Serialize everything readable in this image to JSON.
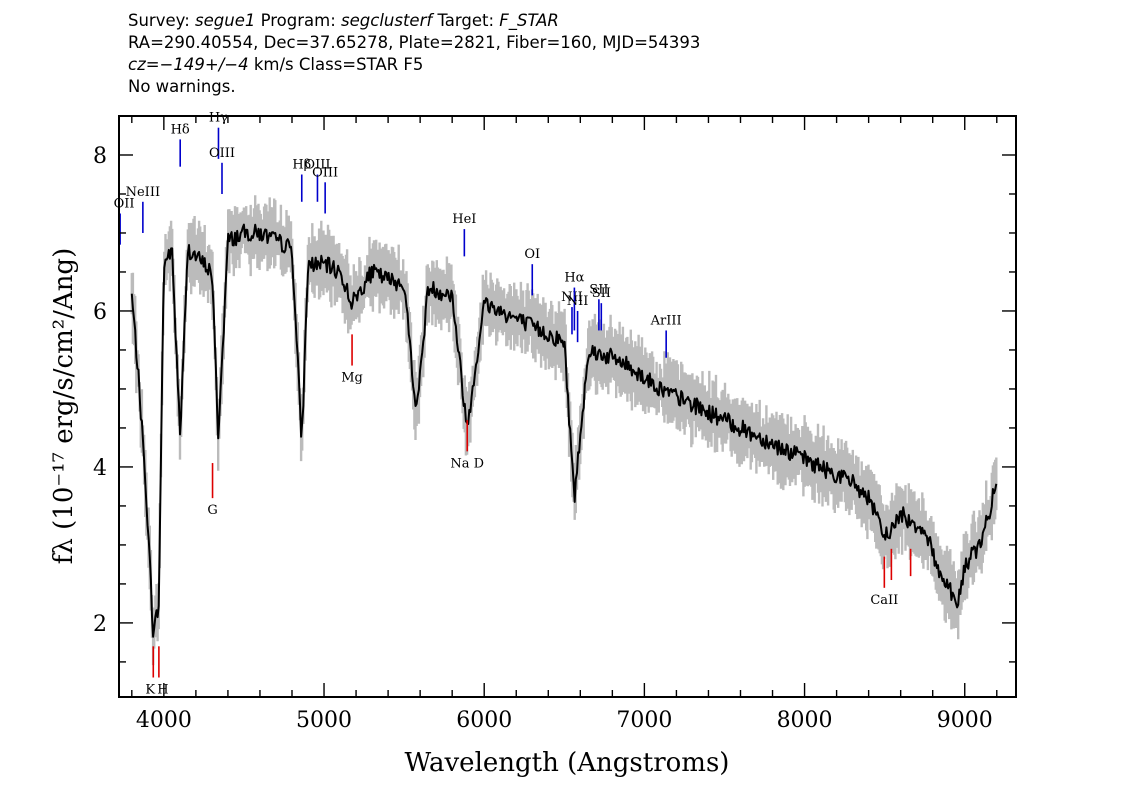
{
  "header": {
    "survey_label": "Survey:",
    "survey": "segue1",
    "program_label": "Program:",
    "program": "segclusterf",
    "target_label": "Target:",
    "target": "F_STAR",
    "line2": "RA=290.40554, Dec=37.65278, Plate=2821, Fiber=160, MJD=54393",
    "cz": "cz=−149+/−4",
    "cz_units": "km/s",
    "class_text": "Class=STAR F5",
    "warnings": "No warnings."
  },
  "chart_data": {
    "type": "line",
    "xlabel": "Wavelength (Angstroms)",
    "ylabel": "fλ (10⁻¹⁷ erg/s/cm²/Ang)",
    "xlim": [
      3720,
      9320
    ],
    "ylim": [
      1.05,
      8.5
    ],
    "x_ticks": [
      4000,
      5000,
      6000,
      7000,
      8000,
      9000
    ],
    "x_tick_labels": [
      "4000",
      "5000",
      "6000",
      "7000",
      "8000",
      "9000"
    ],
    "y_ticks": [
      2,
      4,
      6,
      8
    ],
    "y_tick_labels": [
      "2",
      "4",
      "6",
      "8"
    ],
    "grid": false,
    "series": [
      {
        "style": "flux",
        "color": "#000000",
        "x": [
          3800,
          3840,
          3889,
          3933,
          3968,
          4000,
          4050,
          4102,
          4150,
          4200,
          4250,
          4300,
          4340,
          4400,
          4500,
          4600,
          4700,
          4800,
          4861,
          4900,
          5000,
          5100,
          5175,
          5300,
          5400,
          5500,
          5577,
          5650,
          5800,
          5893,
          6000,
          6100,
          6200,
          6300,
          6400,
          6500,
          6563,
          6650,
          6800,
          6900,
          7000,
          7100,
          7200,
          7300,
          7400,
          7500,
          7600,
          7700,
          7800,
          7900,
          8000,
          8100,
          8200,
          8300,
          8400,
          8498,
          8542,
          8600,
          8662,
          8750,
          8850,
          8900,
          8950,
          9000,
          9050,
          9100,
          9150,
          9200
        ],
        "y": [
          6.2,
          5.2,
          3.7,
          1.9,
          2.2,
          6.6,
          6.8,
          4.4,
          6.8,
          6.7,
          6.6,
          6.5,
          4.4,
          6.9,
          7.0,
          7.0,
          6.9,
          6.8,
          4.3,
          6.6,
          6.6,
          6.5,
          6.1,
          6.5,
          6.4,
          6.35,
          4.7,
          6.3,
          6.2,
          4.5,
          6.1,
          6.0,
          5.9,
          5.8,
          5.7,
          5.6,
          3.6,
          5.5,
          5.4,
          5.3,
          5.15,
          5.0,
          4.9,
          4.8,
          4.7,
          4.6,
          4.5,
          4.4,
          4.3,
          4.2,
          4.1,
          4.0,
          3.9,
          3.8,
          3.6,
          3.1,
          3.2,
          3.4,
          3.3,
          3.2,
          2.6,
          2.5,
          2.2,
          2.7,
          2.9,
          3.0,
          3.4,
          3.8
        ]
      },
      {
        "style": "error",
        "color": "#bbbbbb"
      }
    ],
    "emission_lines": [
      {
        "label": "OII",
        "x": 3727,
        "y_bottom": 6.85,
        "y_top": 7.25
      },
      {
        "label": "NeIII",
        "x": 3869,
        "y_bottom": 7.0,
        "y_top": 7.4
      },
      {
        "label": "Hδ",
        "x": 4102,
        "y_bottom": 7.85,
        "y_top": 8.2
      },
      {
        "label": "Hγ",
        "x": 4341,
        "y_bottom": 7.95,
        "y_top": 8.35
      },
      {
        "label": "OIII",
        "x": 4363,
        "y_bottom": 7.5,
        "y_top": 7.9
      },
      {
        "label": "Hβ",
        "x": 4861,
        "y_bottom": 7.4,
        "y_top": 7.75
      },
      {
        "label": "OIII",
        "x": 4959,
        "y_bottom": 7.4,
        "y_top": 7.75
      },
      {
        "label": "OIII",
        "x": 5007,
        "y_bottom": 7.25,
        "y_top": 7.65
      },
      {
        "label": "HeI",
        "x": 5876,
        "y_bottom": 6.7,
        "y_top": 7.05
      },
      {
        "label": "OI",
        "x": 6300,
        "y_bottom": 6.2,
        "y_top": 6.6
      },
      {
        "label": "NII",
        "x": 6548,
        "y_bottom": 5.7,
        "y_top": 6.05
      },
      {
        "label": "Hα",
        "x": 6563,
        "y_bottom": 5.75,
        "y_top": 6.3
      },
      {
        "label": "NII",
        "x": 6583,
        "y_bottom": 5.6,
        "y_top": 6.0
      },
      {
        "label": "SII",
        "x": 6716,
        "y_bottom": 5.75,
        "y_top": 6.15
      },
      {
        "label": "SII",
        "x": 6731,
        "y_bottom": 5.75,
        "y_top": 6.1
      },
      {
        "label": "ArIII",
        "x": 7136,
        "y_bottom": 5.4,
        "y_top": 5.75
      }
    ],
    "absorption_lines": [
      {
        "label": "K",
        "x": 3934,
        "y_bottom": 1.3,
        "y_top": 1.7
      },
      {
        "label": "H",
        "x": 3969,
        "y_bottom": 1.3,
        "y_top": 1.7
      },
      {
        "label": "G",
        "x": 4304,
        "y_bottom": 3.6,
        "y_top": 4.05
      },
      {
        "label": "Mg",
        "x": 5175,
        "y_bottom": 5.3,
        "y_top": 5.7
      },
      {
        "label": "Na D",
        "x": 5894,
        "y_bottom": 4.2,
        "y_top": 4.6
      },
      {
        "label": "CaII",
        "x": 8498,
        "y_bottom": 2.45,
        "y_top": 2.85
      },
      {
        "label": "CaII",
        "x": 8542,
        "y_bottom": 2.55,
        "y_top": 2.95
      },
      {
        "label": "CaII",
        "x": 8662,
        "y_bottom": 2.6,
        "y_top": 2.95
      }
    ],
    "emission_color": "#0000cc",
    "absorption_color": "#dd0000"
  }
}
